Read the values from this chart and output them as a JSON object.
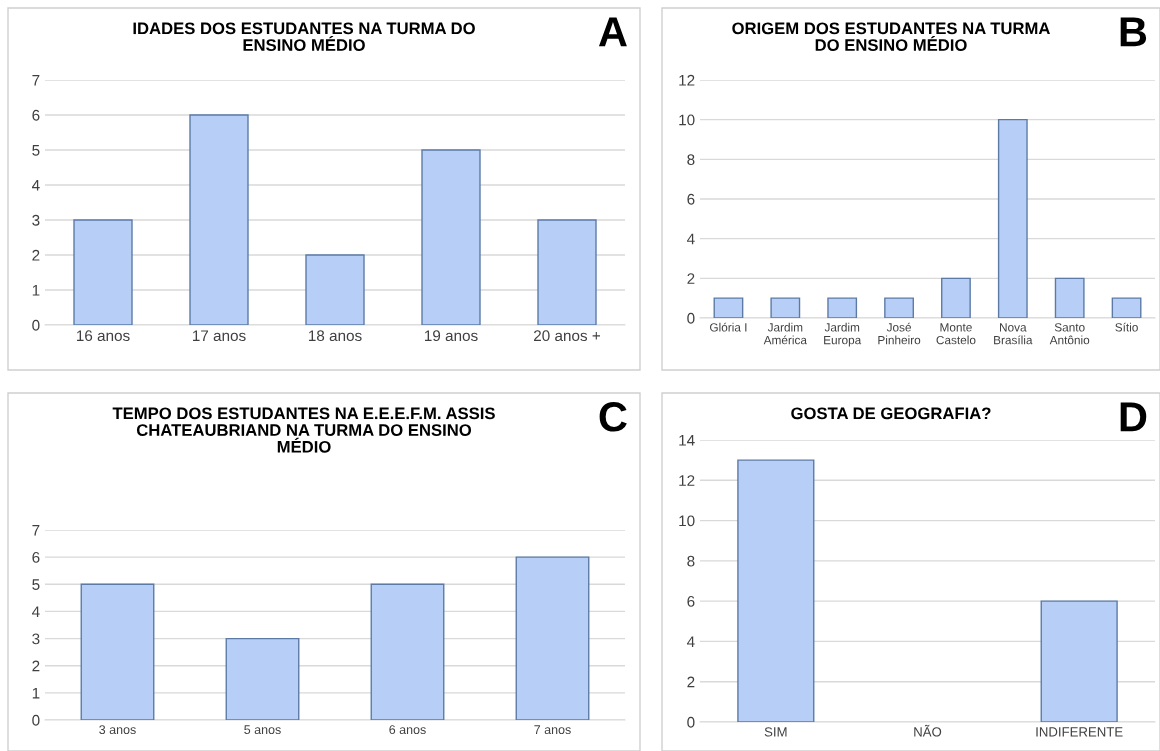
{
  "chart_data": [
    {
      "type": "bar",
      "title": "IDADES DOS ESTUDANTES NA TURMA DO\nENSINO MÉDIO",
      "annotations": [
        "A"
      ],
      "categories": [
        "16 anos",
        "17 anos",
        "18 anos",
        "19 anos",
        "20 anos +"
      ],
      "values": [
        3,
        6,
        2,
        5,
        3
      ],
      "color": "#b7cff6",
      "ylim": [
        0,
        7
      ],
      "yticks": [
        0,
        1,
        2,
        3,
        4,
        5,
        6,
        7
      ],
      "grid": "y"
    },
    {
      "type": "bar",
      "title": "ORIGEM DOS ESTUDANTES NA TURMA\nDO ENSINO MÉDIO",
      "annotations": [
        "B"
      ],
      "categories": [
        "Glória I",
        "Jardim\nAmérica",
        "Jardim\nEuropa",
        "José\nPinheiro",
        "Monte\nCastelo",
        "Nova\nBrasília",
        "Santo\nAntônio",
        "Sítio"
      ],
      "values": [
        1,
        1,
        1,
        1,
        2,
        10,
        2,
        1
      ],
      "color": "#b7cff6",
      "ylim": [
        0,
        12
      ],
      "yticks": [
        0,
        2,
        4,
        6,
        8,
        10,
        12
      ],
      "grid": "y"
    },
    {
      "type": "bar",
      "title": "TEMPO DOS ESTUDANTES NA E.E.E.F.M. ASSIS\nCHATEAUBRIAND NA TURMA DO ENSINO\nMÉDIO",
      "annotations": [
        "C"
      ],
      "categories": [
        "3 anos",
        "5 anos",
        "6 anos",
        "7 anos"
      ],
      "values": [
        5,
        3,
        5,
        6
      ],
      "color": "#b7cff6",
      "ylim": [
        0,
        7
      ],
      "yticks": [
        0,
        1,
        2,
        3,
        4,
        5,
        6,
        7
      ],
      "grid": "y"
    },
    {
      "type": "bar",
      "title": "GOSTA DE GEOGRAFIA?",
      "annotations": [
        "D"
      ],
      "categories": [
        "SIM",
        "NÃO",
        "INDIFERENTE"
      ],
      "values": [
        13,
        0,
        6
      ],
      "color": "#b7cff6",
      "ylim": [
        0,
        14
      ],
      "yticks": [
        0,
        2,
        4,
        6,
        8,
        10,
        12,
        14
      ],
      "grid": "y"
    }
  ]
}
